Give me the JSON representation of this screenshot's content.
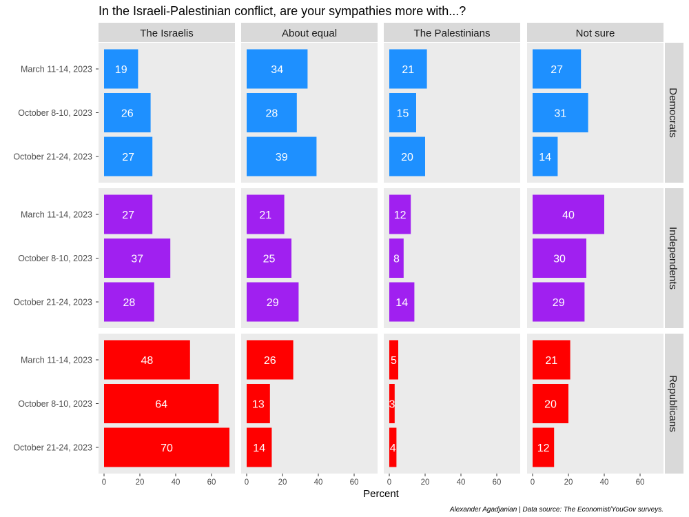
{
  "chart_data": {
    "type": "bar",
    "orientation": "horizontal",
    "title": "In the Israeli-Palestinian conflict, are your sympathies more with...?",
    "xlabel": "Percent",
    "ylabel": "",
    "caption": "Alexander Agadjanian | Data source: The Economist/YouGov surveys.",
    "xlim": [
      0,
      73.5
    ],
    "x_ticks": [
      0,
      20,
      40,
      60
    ],
    "columns": [
      "The Israelis",
      "About equal",
      "The Palestinians",
      "Not sure"
    ],
    "categories": [
      "March 11-14, 2023",
      "October 8-10, 2023",
      "October 21-24, 2023"
    ],
    "rows": [
      {
        "name": "Democrats",
        "color": "#1E90FF",
        "values": [
          [
            19,
            26,
            27
          ],
          [
            34,
            28,
            39
          ],
          [
            21,
            15,
            20
          ],
          [
            27,
            31,
            14
          ]
        ]
      },
      {
        "name": "Independents",
        "color": "#A020F0",
        "values": [
          [
            27,
            37,
            28
          ],
          [
            21,
            25,
            29
          ],
          [
            12,
            8,
            14
          ],
          [
            40,
            30,
            29
          ]
        ]
      },
      {
        "name": "Republicans",
        "color": "#FF0000",
        "values": [
          [
            48,
            64,
            70
          ],
          [
            26,
            13,
            14
          ],
          [
            5,
            3,
            4
          ],
          [
            21,
            20,
            12
          ]
        ]
      }
    ],
    "grid": false,
    "panel_background": "#EBEBEB",
    "strip_background": "#D9D9D9"
  }
}
